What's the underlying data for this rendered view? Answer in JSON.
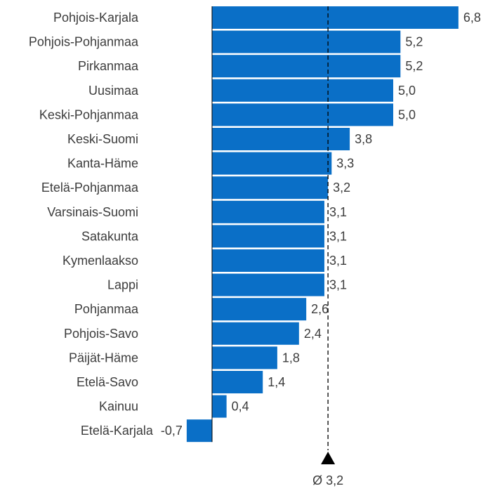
{
  "chart_data": {
    "type": "bar",
    "orientation": "horizontal",
    "categories": [
      "Pohjois-Karjala",
      "Pohjois-Pohjanmaa",
      "Pirkanmaa",
      "Uusimaa",
      "Keski-Pohjanmaa",
      "Keski-Suomi",
      "Kanta-Häme",
      "Etelä-Pohjanmaa",
      "Varsinais-Suomi",
      "Satakunta",
      "Kymenlaakso",
      "Lappi",
      "Pohjanmaa",
      "Pohjois-Savo",
      "Päijät-Häme",
      "Etelä-Savo",
      "Kainuu",
      "Etelä-Karjala"
    ],
    "values": [
      6.8,
      5.2,
      5.2,
      5.0,
      5.0,
      3.8,
      3.3,
      3.2,
      3.1,
      3.1,
      3.1,
      3.1,
      2.6,
      2.4,
      1.8,
      1.4,
      0.4,
      -0.7
    ],
    "value_labels": [
      "6,8",
      "5,2",
      "5,2",
      "5,0",
      "5,0",
      "3,8",
      "3,3",
      "3,2",
      "3,1",
      "3,1",
      "3,1",
      "3,1",
      "2,6",
      "2,4",
      "1,8",
      "1,4",
      "0,4",
      "-0,7"
    ],
    "average": {
      "value": 3.2,
      "label": "Ø 3,2"
    },
    "bar_color": "#0a6fc7",
    "grid": false,
    "legend": "none"
  }
}
